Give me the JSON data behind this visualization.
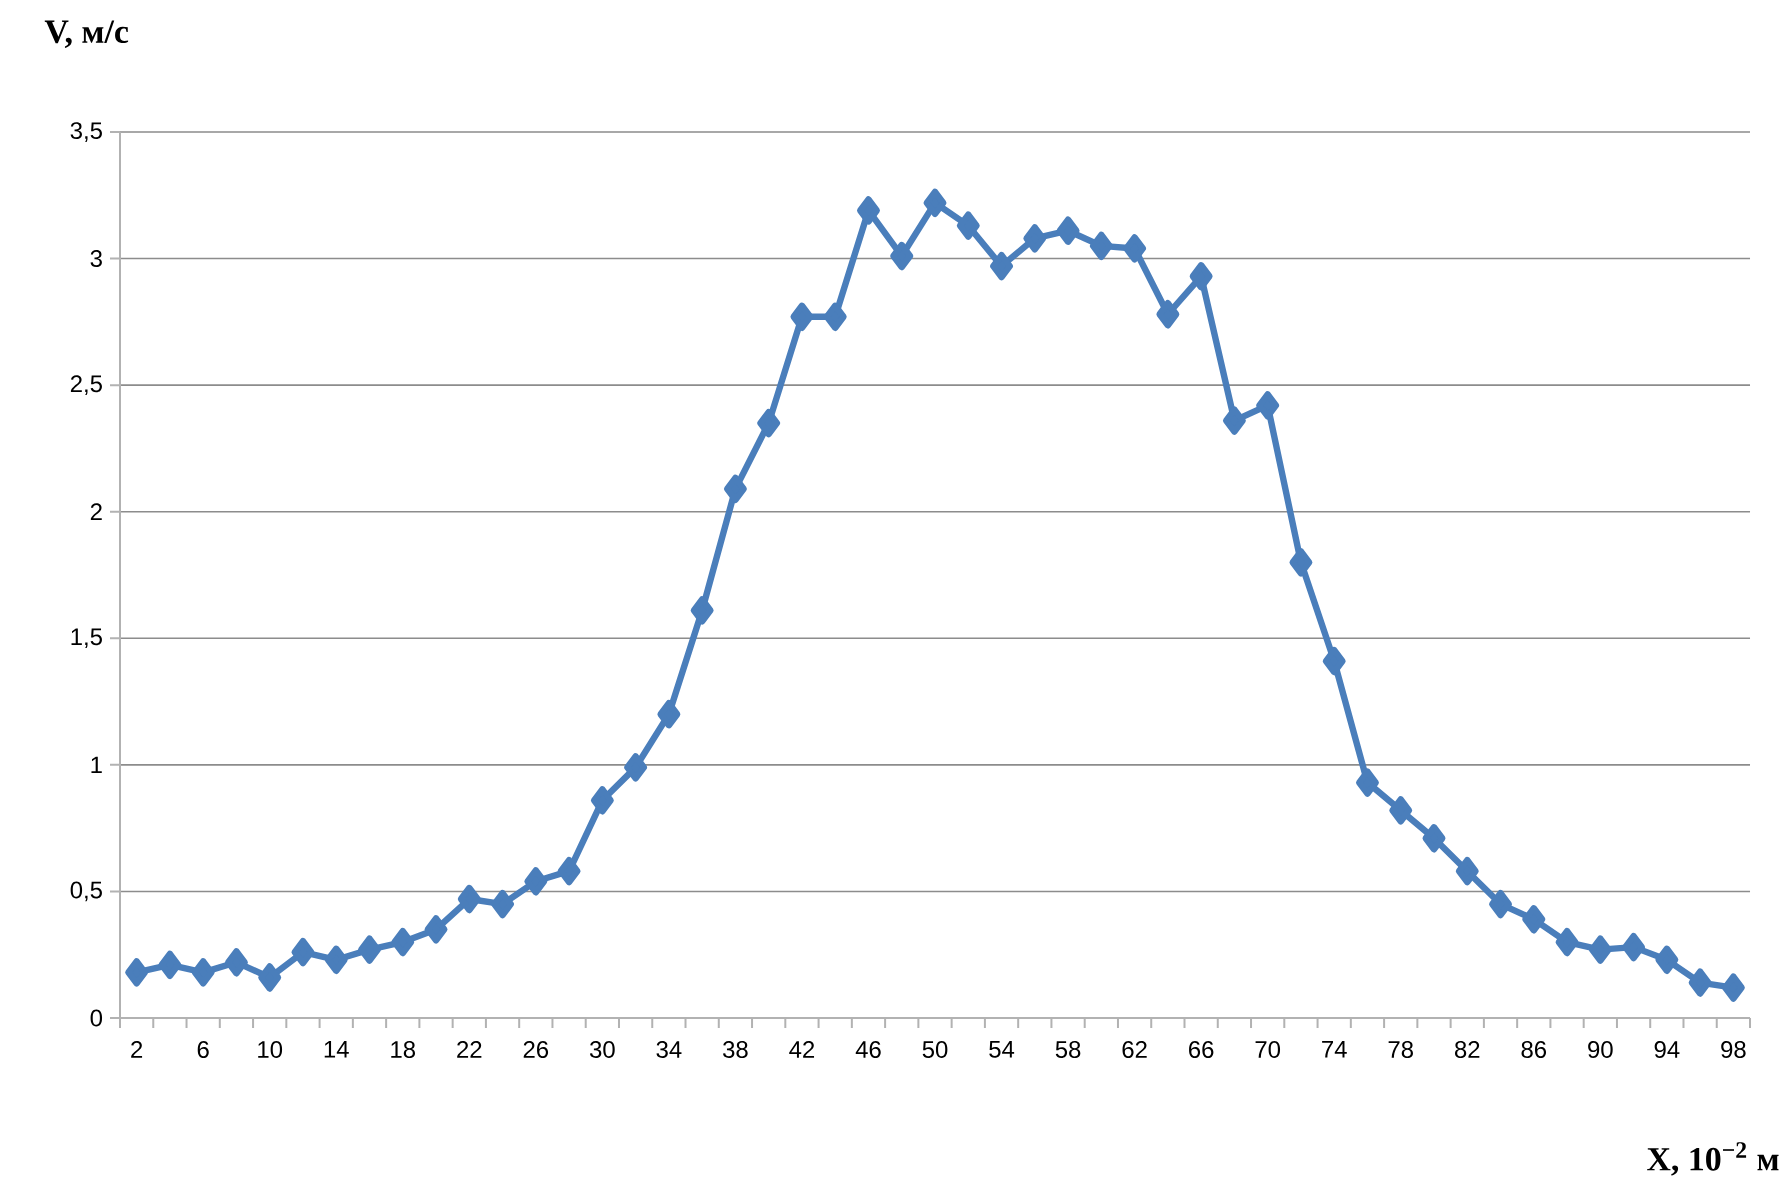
{
  "chart_data": {
    "type": "line",
    "xlabel": "X, 10$^{−2}$ м",
    "ylabel": "V, м/с",
    "categories": [
      "2",
      null,
      "6",
      null,
      "10",
      null,
      "14",
      null,
      "18",
      null,
      "22",
      null,
      "26",
      null,
      "30",
      null,
      "34",
      null,
      "38",
      null,
      "42",
      null,
      "46",
      null,
      "50",
      null,
      "54",
      null,
      "58",
      null,
      "62",
      null,
      "66",
      null,
      "70",
      null,
      "74",
      null,
      "78",
      null,
      "82",
      null,
      "86",
      null,
      "90",
      null,
      "94",
      null,
      "98"
    ],
    "series": [
      {
        "color": "#4a7ebb",
        "values": [
          0.18,
          0.21,
          0.18,
          0.22,
          0.16,
          0.26,
          0.23,
          0.27,
          0.3,
          0.35,
          0.47,
          0.45,
          0.54,
          0.58,
          0.86,
          0.99,
          1.2,
          1.61,
          2.09,
          2.35,
          2.77,
          2.77,
          3.19,
          3.01,
          3.22,
          3.13,
          2.97,
          3.08,
          3.11,
          3.05,
          3.04,
          2.78,
          2.93,
          2.36,
          2.42,
          1.8,
          1.41,
          0.93,
          0.82,
          0.71,
          0.58,
          0.45,
          0.39,
          0.3,
          0.27,
          0.28,
          0.23,
          0.14,
          0.12
        ]
      }
    ],
    "ylim": [
      0,
      3.5
    ],
    "yticks": [
      0,
      {
        "value": 0.5,
        "label": "0,5"
      },
      1,
      {
        "value": 1.5,
        "label": "1,5"
      },
      2,
      {
        "value": 2.5,
        "label": "2,5"
      },
      3,
      {
        "value": 3.5,
        "label": "3,5"
      }
    ],
    "grid": "y",
    "marker": "diamond",
    "line_style": "solid"
  }
}
